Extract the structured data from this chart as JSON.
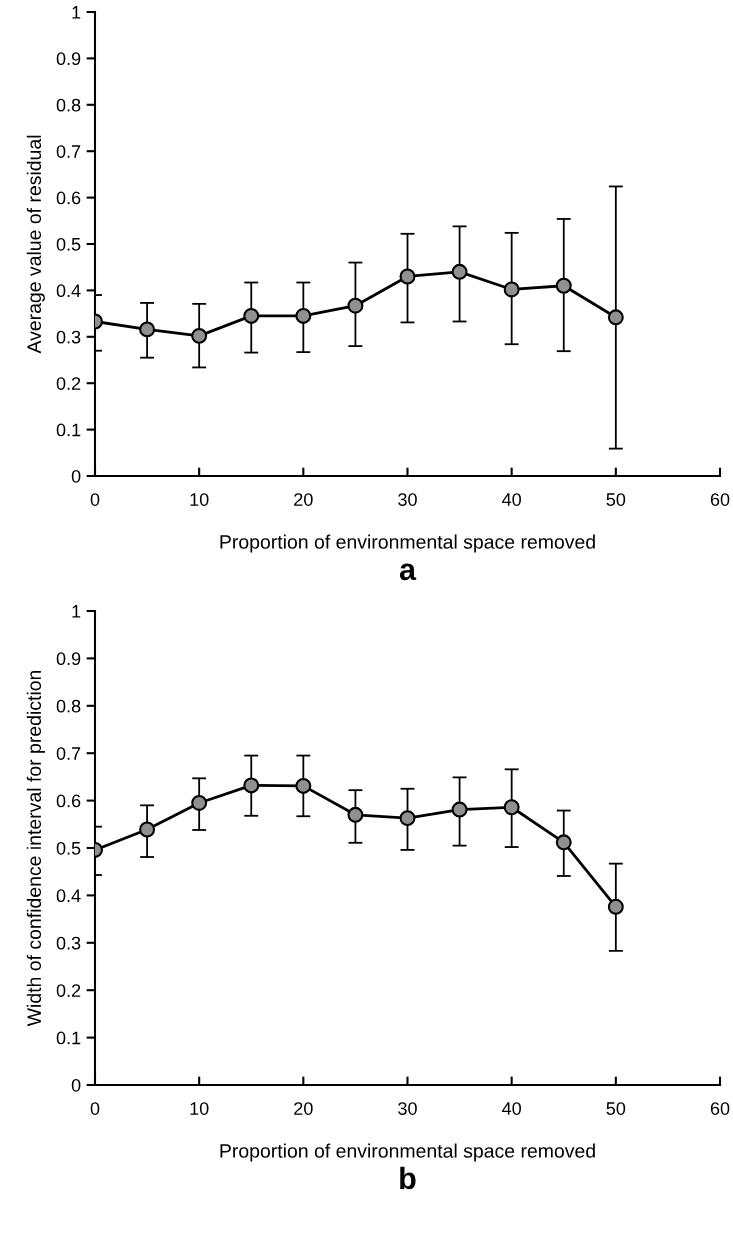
{
  "chart_data": [
    {
      "type": "line",
      "xlabel": "Proportion of environmental space removed",
      "ylabel": "Average value of residual",
      "annotations": [
        "a"
      ],
      "x": [
        0,
        5,
        10,
        15,
        20,
        25,
        30,
        35,
        40,
        45,
        50
      ],
      "series": [
        {
          "color": "#909090",
          "values": [
            0.333,
            0.316,
            0.302,
            0.345,
            0.345,
            0.367,
            0.43,
            0.44,
            0.402,
            0.41,
            0.342
          ],
          "errors": [
            [
              0.27,
              0.39
            ],
            [
              0.255,
              0.373
            ],
            [
              0.234,
              0.371
            ],
            [
              0.266,
              0.417
            ],
            [
              0.267,
              0.417
            ],
            [
              0.28,
              0.46
            ],
            [
              0.331,
              0.522
            ],
            [
              0.333,
              0.538
            ],
            [
              0.284,
              0.524
            ],
            [
              0.269,
              0.554
            ],
            [
              0.059,
              0.624
            ]
          ]
        }
      ],
      "xlim": [
        0,
        60
      ],
      "xticks": [
        0,
        10,
        20,
        30,
        40,
        50,
        60
      ],
      "ylim": [
        0,
        1
      ],
      "yticks": [
        0,
        0.1,
        0.2,
        0.3,
        0.4,
        0.5,
        0.6,
        0.7,
        0.8,
        0.9,
        1
      ],
      "marker": "circle",
      "line_style": "solid",
      "grid": false,
      "legend": false
    },
    {
      "type": "line",
      "xlabel": "Proportion of environmental space removed",
      "ylabel": "Width of confidence interval for prediction",
      "annotations": [
        "b"
      ],
      "x": [
        0,
        5,
        10,
        15,
        20,
        25,
        30,
        35,
        40,
        45,
        50
      ],
      "series": [
        {
          "color": "#909090",
          "values": [
            0.496,
            0.539,
            0.595,
            0.632,
            0.631,
            0.57,
            0.563,
            0.581,
            0.586,
            0.512,
            0.376
          ],
          "errors": [
            [
              0.443,
              0.545
            ],
            [
              0.481,
              0.59
            ],
            [
              0.538,
              0.647
            ],
            [
              0.568,
              0.695
            ],
            [
              0.567,
              0.695
            ],
            [
              0.511,
              0.622
            ],
            [
              0.496,
              0.625
            ],
            [
              0.505,
              0.649
            ],
            [
              0.502,
              0.666
            ],
            [
              0.441,
              0.579
            ],
            [
              0.283,
              0.467
            ]
          ]
        }
      ],
      "xlim": [
        0,
        60
      ],
      "xticks": [
        0,
        10,
        20,
        30,
        40,
        50,
        60
      ],
      "ylim": [
        0,
        1
      ],
      "yticks": [
        0,
        0.1,
        0.2,
        0.3,
        0.4,
        0.5,
        0.6,
        0.7,
        0.8,
        0.9,
        1
      ],
      "marker": "circle",
      "line_style": "solid",
      "grid": false,
      "legend": false
    }
  ]
}
